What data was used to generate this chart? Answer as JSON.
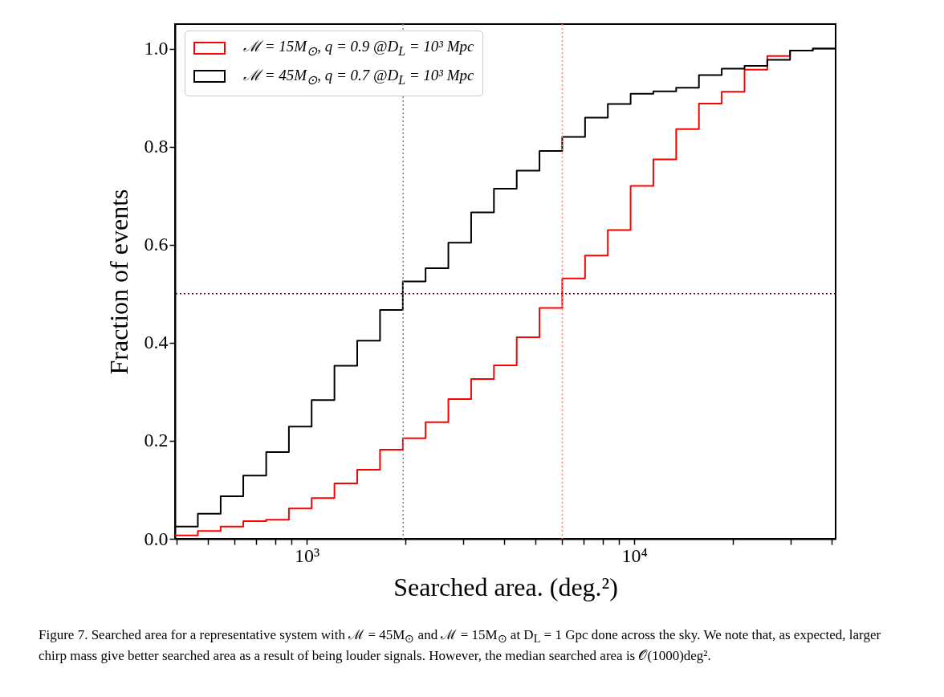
{
  "chart_data": {
    "type": "histogram",
    "xlabel": "Searched area. (deg.²)",
    "ylabel": "Fraction of events",
    "bins": [
      396,
      465,
      546,
      640,
      752,
      882,
      1035,
      1215,
      1426,
      1674,
      1965,
      2306,
      2707,
      3177,
      3729,
      4377,
      5137,
      6029,
      7077,
      8306,
      9749,
      11440,
      13430,
      15760,
      18500,
      21720,
      25490,
      29910,
      35110,
      41210
    ],
    "series": [
      {
        "name": "ℳ = 15M$_{⊙}$, q = 0.9 @D$_{L}$ = 10³ Mpc",
        "color": "#ff0000",
        "values": [
          0.007,
          0.016,
          0.025,
          0.036,
          0.039,
          0.062,
          0.083,
          0.113,
          0.141,
          0.182,
          0.205,
          0.238,
          0.285,
          0.326,
          0.354,
          0.411,
          0.471,
          0.531,
          0.578,
          0.63,
          0.72,
          0.774,
          0.836,
          0.888,
          0.912,
          0.957,
          0.985,
          0.996,
          1.0
        ]
      },
      {
        "name": "ℳ = 45M$_{⊙}$, q = 0.7 @D$_{L}$ = 10³ Mpc",
        "color": "#000000",
        "values": [
          0.025,
          0.051,
          0.087,
          0.129,
          0.177,
          0.229,
          0.283,
          0.353,
          0.404,
          0.467,
          0.525,
          0.552,
          0.604,
          0.666,
          0.714,
          0.751,
          0.791,
          0.82,
          0.859,
          0.887,
          0.908,
          0.913,
          0.92,
          0.946,
          0.959,
          0.965,
          0.977,
          0.996,
          1.0
        ]
      }
    ],
    "log": "x",
    "xlim": [
      396,
      41210
    ],
    "ylim": [
      0,
      1.05
    ],
    "xticks": [
      {
        "value": 400,
        "label": null
      },
      {
        "value": 500,
        "label": null
      },
      {
        "value": 600,
        "label": null
      },
      {
        "value": 700,
        "label": null
      },
      {
        "value": 800,
        "label": null
      },
      {
        "value": 900,
        "label": null
      },
      {
        "value": 1000,
        "label": "10³"
      },
      {
        "value": 2000,
        "label": null
      },
      {
        "value": 3000,
        "label": null
      },
      {
        "value": 4000,
        "label": null
      },
      {
        "value": 5000,
        "label": null
      },
      {
        "value": 6000,
        "label": null
      },
      {
        "value": 7000,
        "label": null
      },
      {
        "value": 8000,
        "label": null
      },
      {
        "value": 9000,
        "label": null
      },
      {
        "value": 10000,
        "label": "10⁴"
      },
      {
        "value": 20000,
        "label": null
      },
      {
        "value": 30000,
        "label": null
      },
      {
        "value": 40000,
        "label": null
      }
    ],
    "yticks": [
      {
        "value": 0,
        "label": "0.0"
      },
      0.2,
      0.4,
      0.6,
      0.8,
      {
        "value": 1,
        "label": "1.0"
      }
    ],
    "ref_lines": [
      {
        "axis": "x",
        "value": 1970,
        "color": "#808080",
        "line_style": "dotted"
      },
      {
        "axis": "x",
        "value": 6030,
        "color": "#ff8080",
        "line_style": "dotted"
      },
      {
        "axis": "y",
        "value": 0.5,
        "color": "#800000",
        "line_style": "dotted"
      }
    ],
    "grid": false,
    "legend": "top left",
    "line_style": "solid",
    "annotations": [
      "Figure 7. Searched area for a representative system with ℳ = 45M$_{⊙}$ and ℳ = 15M$_{⊙}$ at D$_{L}$ = 1 Gpc done across the sky. We note that, as expected, larger chirp mass give better searched area as a result of being louder signals. However, the median searched area is 𝒪(1000)deg²."
    ]
  }
}
